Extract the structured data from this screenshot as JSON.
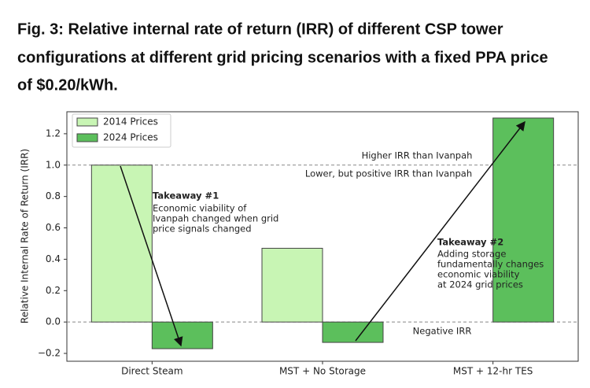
{
  "header": {
    "title_lines": [
      "Fig. 3: Relative internal rate of return (IRR) of different CSP tower",
      "configurations at different grid pricing scenarios with a fixed PPA price",
      "of $0.20/kWh."
    ]
  },
  "chart_data": {
    "type": "bar",
    "ylabel": "Relative Internal Rate of Return (IRR)",
    "categories": [
      "Direct Steam",
      "MST + No Storage",
      "MST + 12-hr TES"
    ],
    "series": [
      {
        "name": "2014 Prices",
        "color": "#c8f5b4",
        "values": [
          1.0,
          0.47,
          null
        ]
      },
      {
        "name": "2024 Prices",
        "color": "#5cbf5c",
        "values": [
          -0.17,
          -0.13,
          1.3
        ]
      }
    ],
    "ylim": [
      -0.25,
      1.34
    ],
    "yticks": [
      {
        "value": -0.2,
        "label": "−0.2"
      },
      {
        "value": 0,
        "label": "0.0"
      },
      0.2,
      0.4,
      0.6,
      {
        "value": 1.0,
        "label": "1.0"
      },
      0.8,
      1.2
    ],
    "legend": "upper left",
    "reference_lines": [
      {
        "value": 1.0,
        "labels": [
          "Higher IRR than Ivanpah",
          "Lower, but positive IRR than Ivanpah"
        ]
      },
      {
        "value": 0,
        "labels": [
          "Negative IRR"
        ]
      }
    ],
    "annotations": [
      {
        "title": "Takeaway #1",
        "lines": [
          "Economic viability of",
          "Ivanpah changed when grid",
          "price signals changed"
        ]
      },
      {
        "title": "Takeaway #2",
        "lines": [
          "Adding storage",
          "fundamentally changes",
          "economic viability",
          "at 2024 grid prices"
        ]
      }
    ]
  }
}
